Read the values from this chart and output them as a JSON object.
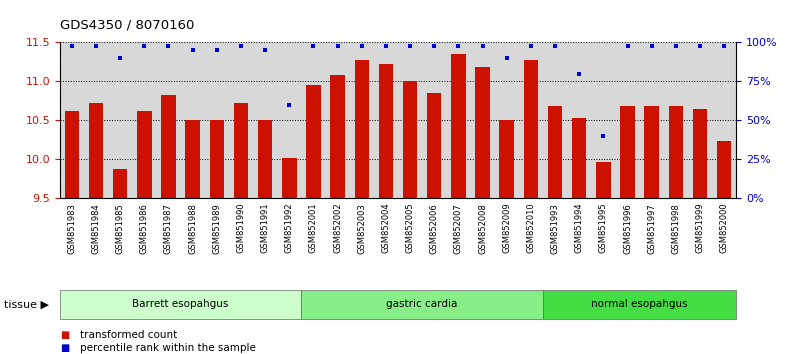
{
  "title": "GDS4350 / 8070160",
  "samples": [
    "GSM851983",
    "GSM851984",
    "GSM851985",
    "GSM851986",
    "GSM851987",
    "GSM851988",
    "GSM851989",
    "GSM851990",
    "GSM851991",
    "GSM851992",
    "GSM852001",
    "GSM852002",
    "GSM852003",
    "GSM852004",
    "GSM852005",
    "GSM852006",
    "GSM852007",
    "GSM852008",
    "GSM852009",
    "GSM852010",
    "GSM851993",
    "GSM851994",
    "GSM851995",
    "GSM851996",
    "GSM851997",
    "GSM851998",
    "GSM851999",
    "GSM852000"
  ],
  "bar_values": [
    10.62,
    10.72,
    9.88,
    10.62,
    10.83,
    10.5,
    10.5,
    10.72,
    10.5,
    10.02,
    10.95,
    11.08,
    11.28,
    11.22,
    11.0,
    10.85,
    11.35,
    11.18,
    10.5,
    11.28,
    10.68,
    10.53,
    9.97,
    10.68,
    10.68,
    10.68,
    10.65,
    10.23
  ],
  "percentile_values": [
    98,
    98,
    90,
    98,
    98,
    95,
    95,
    98,
    95,
    60,
    98,
    98,
    98,
    98,
    98,
    98,
    98,
    98,
    90,
    98,
    98,
    80,
    40,
    98,
    98,
    98,
    98,
    98
  ],
  "bar_color": "#cc1100",
  "dot_color": "#0000cc",
  "ymin": 9.5,
  "ymax": 11.5,
  "yticks_left": [
    9.5,
    10.0,
    10.5,
    11.0,
    11.5
  ],
  "yticks_right": [
    0,
    25,
    50,
    75,
    100
  ],
  "ytick_labels_right": [
    "0%",
    "25%",
    "50%",
    "75%",
    "100%"
  ],
  "groups": [
    {
      "label": "Barrett esopahgus",
      "start": 0,
      "end": 10,
      "color": "#ccffcc"
    },
    {
      "label": "gastric cardia",
      "start": 10,
      "end": 20,
      "color": "#88ee88"
    },
    {
      "label": "normal esopahgus",
      "start": 20,
      "end": 28,
      "color": "#44dd44"
    }
  ],
  "legend_bar_label": "transformed count",
  "legend_dot_label": "percentile rank within the sample",
  "background_color": "#ffffff",
  "plot_bg_color": "#d8d8d8",
  "xlabel_bg_color": "#c8c8c8"
}
